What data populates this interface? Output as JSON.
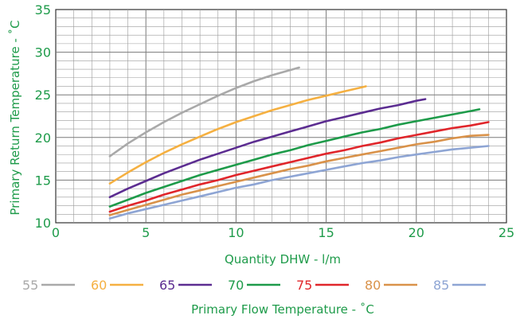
{
  "chart_data": {
    "type": "line",
    "title": "",
    "xlabel": "Quantity DHW - l/m",
    "ylabel": "Primary Return Temperature - ˚C",
    "xlim": [
      0,
      25
    ],
    "ylim": [
      10,
      35
    ],
    "xticks": [
      0,
      5,
      10,
      15,
      20,
      25
    ],
    "yticks": [
      10,
      15,
      20,
      25,
      30,
      35
    ],
    "grid": true,
    "legend_title": "Primary Flow Temperature - ˚C",
    "legend_position": "bottom",
    "series": [
      {
        "name": "55",
        "color": "#a9a9a9",
        "x": [
          3,
          4,
          5,
          6,
          7,
          8,
          9,
          10,
          11,
          12,
          13,
          13.5
        ],
        "y": [
          17.8,
          19.3,
          20.6,
          21.8,
          22.9,
          23.9,
          24.9,
          25.8,
          26.6,
          27.3,
          27.9,
          28.2
        ]
      },
      {
        "name": "60",
        "color": "#f5b041",
        "x": [
          3,
          4,
          5,
          6,
          7,
          8,
          9,
          10,
          11,
          12,
          13,
          14,
          15,
          16,
          17,
          17.2
        ],
        "y": [
          14.6,
          15.9,
          17.1,
          18.2,
          19.2,
          20.1,
          21.0,
          21.8,
          22.5,
          23.2,
          23.8,
          24.4,
          24.9,
          25.4,
          25.9,
          26.0
        ]
      },
      {
        "name": "65",
        "color": "#5c2d91",
        "x": [
          3,
          4,
          5,
          6,
          7,
          8,
          9,
          10,
          11,
          12,
          13,
          14,
          15,
          16,
          17,
          18,
          19,
          20,
          20.5
        ],
        "y": [
          13.0,
          14.0,
          14.9,
          15.8,
          16.6,
          17.4,
          18.1,
          18.8,
          19.5,
          20.1,
          20.7,
          21.3,
          21.9,
          22.4,
          22.9,
          23.4,
          23.8,
          24.3,
          24.5
        ]
      },
      {
        "name": "70",
        "color": "#1e9b4a",
        "x": [
          3,
          4,
          5,
          6,
          7,
          8,
          9,
          10,
          11,
          12,
          13,
          14,
          15,
          16,
          17,
          18,
          19,
          20,
          21,
          22,
          23,
          23.5
        ],
        "y": [
          11.9,
          12.7,
          13.5,
          14.2,
          14.9,
          15.6,
          16.2,
          16.8,
          17.4,
          18.0,
          18.5,
          19.1,
          19.6,
          20.1,
          20.6,
          21.0,
          21.5,
          21.9,
          22.3,
          22.7,
          23.1,
          23.3
        ]
      },
      {
        "name": "75",
        "color": "#e0262b",
        "x": [
          3,
          4,
          5,
          6,
          7,
          8,
          9,
          10,
          11,
          12,
          13,
          14,
          15,
          16,
          17,
          18,
          19,
          20,
          21,
          22,
          23,
          24
        ],
        "y": [
          11.3,
          12.0,
          12.6,
          13.3,
          13.9,
          14.5,
          15.0,
          15.6,
          16.1,
          16.6,
          17.1,
          17.6,
          18.1,
          18.5,
          19.0,
          19.4,
          19.9,
          20.3,
          20.7,
          21.1,
          21.4,
          21.8
        ]
      },
      {
        "name": "80",
        "color": "#d9924a",
        "x": [
          3,
          4,
          5,
          6,
          7,
          8,
          9,
          10,
          11,
          12,
          13,
          14,
          15,
          16,
          17,
          18,
          19,
          20,
          21,
          22,
          23,
          24
        ],
        "y": [
          10.9,
          11.5,
          12.1,
          12.7,
          13.3,
          13.8,
          14.3,
          14.8,
          15.3,
          15.8,
          16.3,
          16.7,
          17.2,
          17.6,
          18.0,
          18.4,
          18.8,
          19.2,
          19.5,
          19.9,
          20.2,
          20.3
        ]
      },
      {
        "name": "85",
        "color": "#8ea5d4",
        "x": [
          3,
          4,
          5,
          6,
          7,
          8,
          9,
          10,
          11,
          12,
          13,
          14,
          15,
          16,
          17,
          18,
          19,
          20,
          21,
          22,
          23,
          24
        ],
        "y": [
          10.5,
          11.1,
          11.6,
          12.1,
          12.6,
          13.1,
          13.6,
          14.1,
          14.5,
          15.0,
          15.4,
          15.8,
          16.2,
          16.6,
          17.0,
          17.3,
          17.7,
          18.0,
          18.3,
          18.6,
          18.8,
          19.0
        ]
      }
    ]
  },
  "colors": {
    "text": "#1e9b4a",
    "grid": "#9a9a9a",
    "axis": "#333333"
  }
}
